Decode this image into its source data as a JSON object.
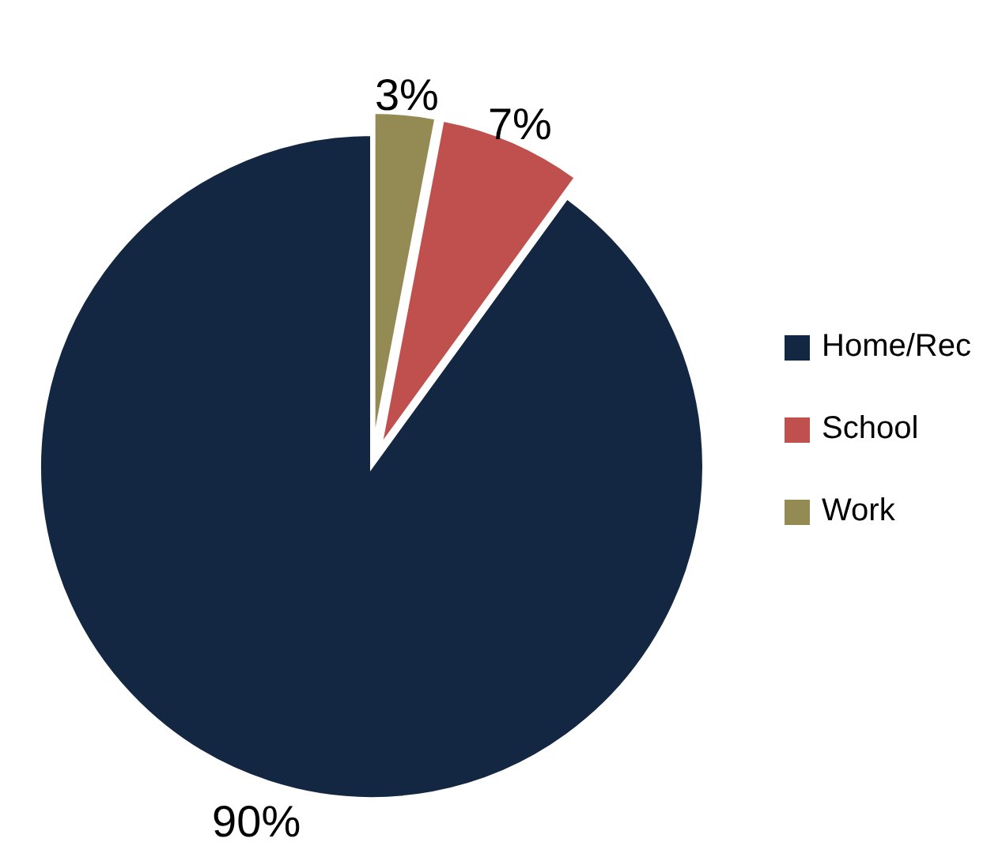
{
  "chart_data": {
    "type": "pie",
    "categories": [
      "Work",
      "School",
      "Home/Rec"
    ],
    "values": [
      3,
      7,
      90
    ],
    "colors": [
      "#948b54",
      "#c0504d",
      "#132742"
    ],
    "value_labels": [
      "3%",
      "7%",
      "90%"
    ],
    "legend": "right"
  }
}
